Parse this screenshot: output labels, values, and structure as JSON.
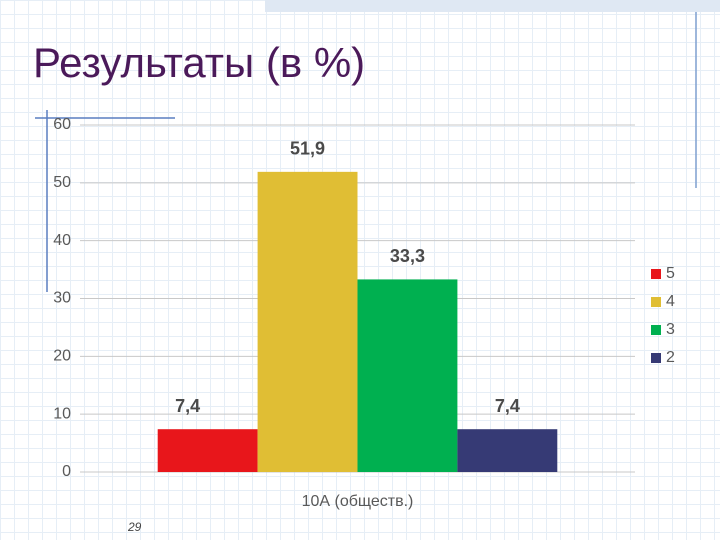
{
  "chart_data": {
    "type": "bar",
    "title": "Результаты (в %)",
    "categories": [
      "10А (общеcтв.)"
    ],
    "series": [
      {
        "name": "5",
        "color": "#e8161b",
        "values": [
          7.4
        ],
        "value_labels": [
          "7,4"
        ]
      },
      {
        "name": "4",
        "color": "#e0be34",
        "values": [
          51.9
        ],
        "value_labels": [
          "51,9"
        ]
      },
      {
        "name": "3",
        "color": "#00b050",
        "values": [
          33.3
        ],
        "value_labels": [
          "33,3"
        ]
      },
      {
        "name": "2",
        "color": "#363a75",
        "values": [
          7.4
        ],
        "value_labels": [
          "7,4"
        ]
      }
    ],
    "ylim": [
      0,
      60
    ],
    "yticks": [
      0,
      10,
      20,
      30,
      40,
      50,
      60
    ],
    "grid": true,
    "legend": "right"
  },
  "slide": {
    "page_number": "29"
  }
}
